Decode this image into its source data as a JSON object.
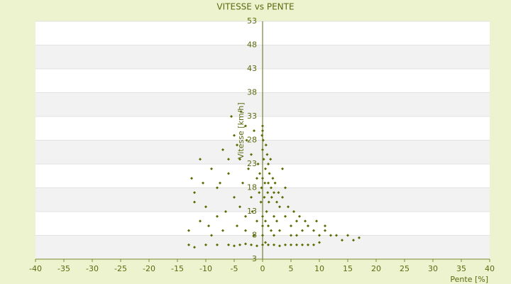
{
  "chart_data": {
    "type": "scatter",
    "title": "VITESSE vs PENTE",
    "x_label": "Pente [%]",
    "y_label": "Vitesse [km/h]",
    "color": "#5a6b00",
    "xlim": [
      -40,
      40
    ],
    "ylim": [
      3,
      53
    ],
    "xticks": [
      -40,
      -35,
      -30,
      -25,
      -20,
      -15,
      -10,
      -5,
      0,
      5,
      10,
      15,
      20,
      25,
      30,
      35,
      40
    ],
    "yticks": [
      3,
      8,
      13,
      18,
      23,
      28,
      33,
      38,
      43,
      48,
      53
    ],
    "grid": true,
    "x": [
      0,
      0.5,
      1,
      1.5,
      0.2,
      -0.5,
      2,
      0.8,
      1.2,
      -0.2,
      0.3,
      1.8,
      2.5,
      0.6,
      -0.8,
      0,
      1,
      0.4,
      -0.3,
      1.6,
      2.2,
      0.9,
      -1,
      0.1,
      1.4,
      3,
      2.8,
      0.7,
      -0.6,
      1.1,
      -13,
      -12.5,
      -12,
      -11,
      -10,
      -9,
      -8,
      -7,
      -6,
      -5,
      -4,
      -3,
      -5.5,
      -4.5,
      -3.5,
      -2.5,
      -2,
      -2,
      -6.5,
      -8,
      -9.5,
      -11,
      -12,
      -7.5,
      -4,
      -3,
      -5,
      -10.5,
      -6,
      -2.8,
      -3.8,
      -1.5,
      -1.8,
      -4.5,
      -7,
      -9,
      -3,
      4,
      5,
      6,
      7,
      8,
      9,
      10,
      11,
      12,
      13,
      14,
      15,
      16,
      17,
      3.5,
      4.5,
      5.5,
      6.5,
      4,
      3.5,
      5,
      7.5,
      9.5,
      11,
      2.5,
      3,
      6,
      -13,
      -12,
      -10,
      -8,
      -6,
      -5,
      -4,
      -3,
      -2,
      -1,
      0,
      0.5,
      1,
      2,
      3,
      4,
      5,
      6,
      7,
      8,
      9,
      10,
      0,
      0,
      0,
      0,
      0,
      -0.1,
      1,
      2,
      -1,
      1.5,
      -1.5,
      2,
      0.5
    ],
    "values": [
      20,
      22,
      19,
      18,
      24,
      21,
      17,
      25,
      21,
      18,
      16,
      20,
      15,
      27,
      23,
      26,
      23,
      19,
      15,
      16,
      19,
      17,
      20,
      28,
      24,
      14,
      17,
      13,
      17,
      15,
      9,
      20,
      17,
      24,
      14,
      22,
      18,
      26,
      21,
      29,
      24,
      31,
      33,
      27,
      19,
      22,
      25,
      16,
      13,
      12,
      10,
      11,
      15,
      19,
      14,
      12,
      16,
      19,
      24,
      28,
      34,
      30,
      13,
      10,
      9,
      8,
      9,
      12,
      10,
      11,
      9,
      10,
      9,
      8,
      9,
      8,
      8,
      7,
      8,
      7,
      7.5,
      16,
      14,
      13,
      12,
      18,
      22,
      8,
      11,
      11,
      10,
      11,
      9,
      8,
      6,
      5.5,
      6,
      6,
      6,
      5.8,
      6,
      6.2,
      6,
      5.8,
      6,
      6.5,
      6,
      6,
      5.8,
      6,
      6,
      6,
      6,
      6,
      6,
      6.5,
      8,
      10,
      12,
      31,
      30,
      29,
      10,
      12,
      11,
      9,
      8,
      8,
      11
    ]
  }
}
